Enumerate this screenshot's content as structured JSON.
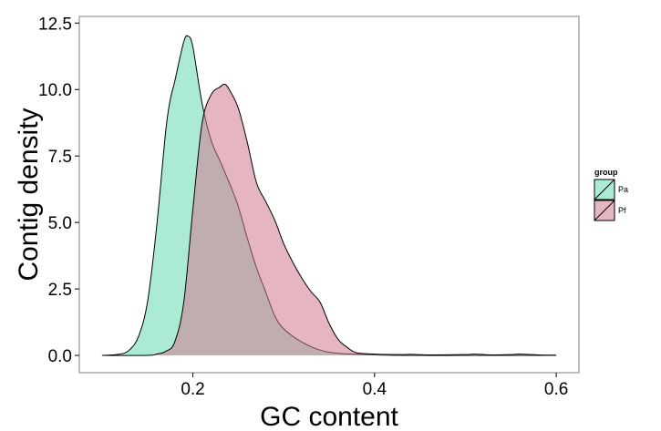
{
  "chart_data": {
    "type": "area",
    "xlabel": "GC content",
    "ylabel": "Contig density",
    "xlim": [
      0.075,
      0.625
    ],
    "ylim": [
      -0.65,
      12.75
    ],
    "x_ticks": [
      0.2,
      0.4,
      0.6
    ],
    "x_tick_labels": [
      "0.2",
      "0.4",
      "0.6"
    ],
    "y_ticks": [
      0.0,
      2.5,
      5.0,
      7.5,
      10.0,
      12.5
    ],
    "y_tick_labels": [
      "0.0",
      "2.5",
      "5.0",
      "7.5",
      "10.0",
      "12.5"
    ],
    "grid": false,
    "legend": {
      "title": "group",
      "position": "right"
    },
    "series": [
      {
        "name": "Pa",
        "color": "#66d9b3",
        "opacity": 0.55,
        "x": [
          0.1,
          0.12,
          0.13,
          0.14,
          0.15,
          0.16,
          0.17,
          0.175,
          0.18,
          0.19,
          0.195,
          0.2,
          0.21,
          0.22,
          0.23,
          0.24,
          0.25,
          0.26,
          0.27,
          0.28,
          0.29,
          0.3,
          0.32,
          0.34,
          0.36,
          0.4,
          0.45,
          0.5,
          0.55,
          0.6
        ],
        "values": [
          0.0,
          0.05,
          0.2,
          0.7,
          2.0,
          4.8,
          8.4,
          9.6,
          10.3,
          11.8,
          12.0,
          11.6,
          9.5,
          8.1,
          7.3,
          6.5,
          5.6,
          4.4,
          3.3,
          2.4,
          1.5,
          1.0,
          0.5,
          0.2,
          0.08,
          0.02,
          0.0,
          0.0,
          0.0,
          0.0
        ]
      },
      {
        "name": "Pf",
        "color": "#d27a8c",
        "opacity": 0.55,
        "x": [
          0.1,
          0.15,
          0.16,
          0.17,
          0.18,
          0.19,
          0.2,
          0.21,
          0.22,
          0.23,
          0.235,
          0.24,
          0.25,
          0.26,
          0.27,
          0.28,
          0.29,
          0.3,
          0.31,
          0.32,
          0.33,
          0.34,
          0.35,
          0.36,
          0.37,
          0.38,
          0.4,
          0.43,
          0.44,
          0.46,
          0.5,
          0.51,
          0.53,
          0.55,
          0.56,
          0.58,
          0.6
        ],
        "values": [
          0.0,
          0.0,
          0.05,
          0.15,
          0.5,
          2.0,
          5.5,
          8.7,
          9.8,
          10.1,
          10.2,
          10.0,
          9.3,
          8.0,
          6.5,
          5.8,
          5.1,
          4.2,
          3.5,
          2.9,
          2.4,
          2.0,
          1.2,
          0.6,
          0.3,
          0.1,
          0.05,
          0.03,
          0.04,
          0.02,
          0.03,
          0.05,
          0.02,
          0.03,
          0.05,
          0.02,
          0.01
        ]
      }
    ]
  }
}
